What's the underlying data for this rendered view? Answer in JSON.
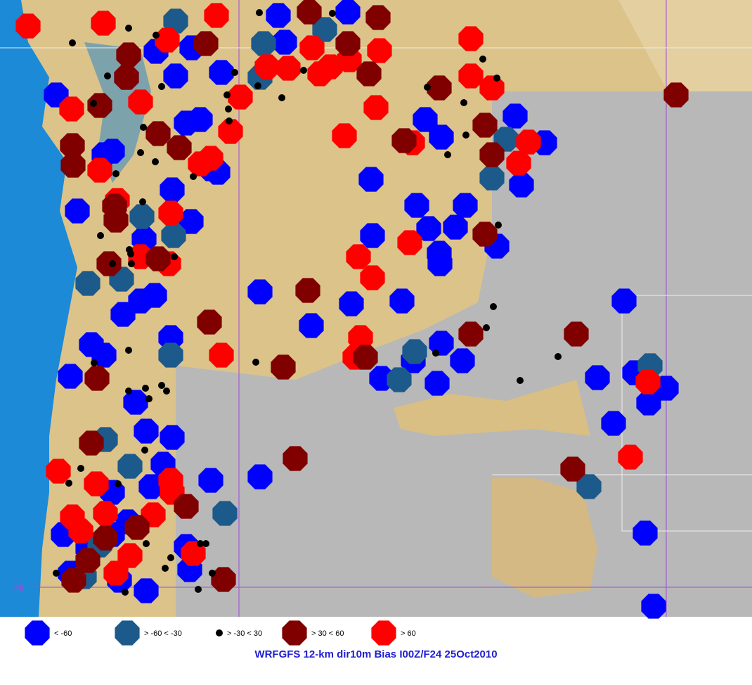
{
  "map": {
    "latitude_label": "40",
    "legend": [
      {
        "label": "< -60"
      },
      {
        "label": "> -60 < -30"
      },
      {
        "label": "> -30 < 30"
      },
      {
        "label": "> 30 < 60"
      },
      {
        "label": "> 60"
      }
    ],
    "title": "WRFGFS 12-km dir10m Bias I00Z/F24 25Oct2010"
  }
}
